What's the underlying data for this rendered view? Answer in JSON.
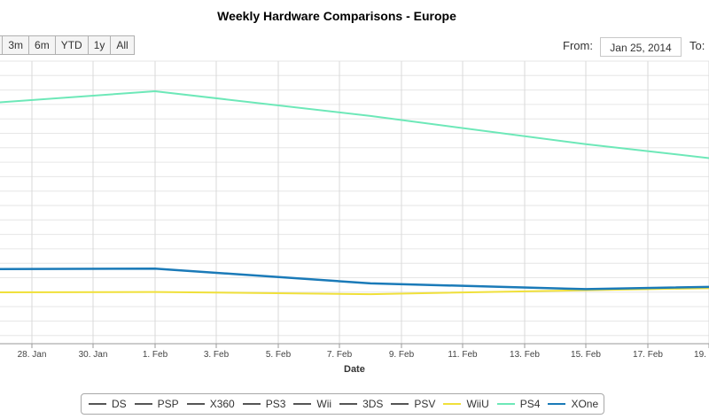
{
  "chart_data": {
    "type": "line",
    "title": "Weekly Hardware Comparisons - Europe",
    "xlabel": "Date",
    "ylabel": "",
    "x_ticks": [
      "28. Jan",
      "30. Jan",
      "1. Feb",
      "3. Feb",
      "5. Feb",
      "7. Feb",
      "9. Feb",
      "11. Feb",
      "13. Feb",
      "15. Feb",
      "17. Feb",
      "19. Feb"
    ],
    "grid": true,
    "legend_position": "bottom",
    "series": [
      {
        "name": "DS",
        "color": "#555555",
        "x": [],
        "y": []
      },
      {
        "name": "PSP",
        "color": "#555555",
        "x": [],
        "y": []
      },
      {
        "name": "X360",
        "color": "#555555",
        "x": [],
        "y": []
      },
      {
        "name": "PS3",
        "color": "#555555",
        "x": [],
        "y": []
      },
      {
        "name": "Wii",
        "color": "#555555",
        "x": [],
        "y": []
      },
      {
        "name": "3DS",
        "color": "#555555",
        "x": [],
        "y": []
      },
      {
        "name": "PSV",
        "color": "#555555",
        "x": [],
        "y": []
      },
      {
        "name": "WiiU",
        "color": "#f0e03a",
        "x": [
          "2014-01-25",
          "2014-02-01",
          "2014-02-08",
          "2014-02-15",
          "2014-02-22"
        ],
        "y": [
          0.088,
          0.09,
          0.08,
          0.098,
          0.114
        ]
      },
      {
        "name": "PS4",
        "color": "#6de8b8",
        "x": [
          "2014-01-25",
          "2014-02-01",
          "2014-02-08",
          "2014-02-15",
          "2014-02-22"
        ],
        "y": [
          0.93,
          1.0,
          0.888,
          0.76,
          0.65
        ]
      },
      {
        "name": "XOne",
        "color": "#1a7ab8",
        "x": [
          "2014-01-25",
          "2014-02-01",
          "2014-02-08",
          "2014-02-15",
          "2014-02-22"
        ],
        "y": [
          0.193,
          0.196,
          0.129,
          0.103,
          0.121
        ]
      }
    ]
  },
  "controls": {
    "zoom": [
      "3m",
      "6m",
      "YTD",
      "1y",
      "All"
    ],
    "from_label": "From:",
    "from_value": "Jan 25, 2014",
    "to_label": "To:"
  }
}
